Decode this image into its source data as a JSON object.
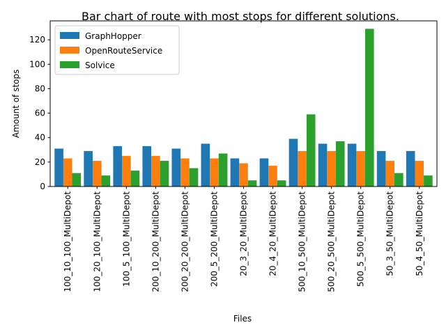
{
  "chart_data": {
    "type": "bar",
    "title": "Bar chart of route with most stops for different solutions.",
    "xlabel": "Files",
    "ylabel": "Amount of stops",
    "ylim": [
      0,
      135.5
    ],
    "yticks": [
      0,
      20,
      40,
      60,
      80,
      100,
      120
    ],
    "grid": false,
    "legend_position": "top-left",
    "categories": [
      "100_10_100_MultiDepot",
      "100_20_100_MultiDepot",
      "100_5_100_MultiDepot",
      "200_10_200_MultiDepot",
      "200_20_200_MultiDepot",
      "200_5_200_MultiDepot",
      "20_3_20_MultiDepot",
      "20_4_20_MultiDepot",
      "500_10_500_MultiDepot",
      "500_20_500_MultiDepot",
      "500_5_500_MultiDepot",
      "50_3_50_MultiDepot",
      "50_4_50_MultiDepot"
    ],
    "series": [
      {
        "name": "GraphHopper",
        "color": "#1f77b4",
        "values": [
          31,
          29,
          33,
          33,
          31,
          35,
          23,
          23,
          39,
          35,
          35,
          29,
          29
        ]
      },
      {
        "name": "OpenRouteService",
        "color": "#ff7f0e",
        "values": [
          23,
          21,
          25,
          25,
          23,
          23,
          19,
          17,
          29,
          29,
          29,
          21,
          21
        ]
      },
      {
        "name": "Solvice",
        "color": "#2ca02c",
        "values": [
          11,
          9,
          13,
          21,
          15,
          27,
          5,
          5,
          59,
          37,
          129,
          11,
          9
        ]
      }
    ]
  }
}
